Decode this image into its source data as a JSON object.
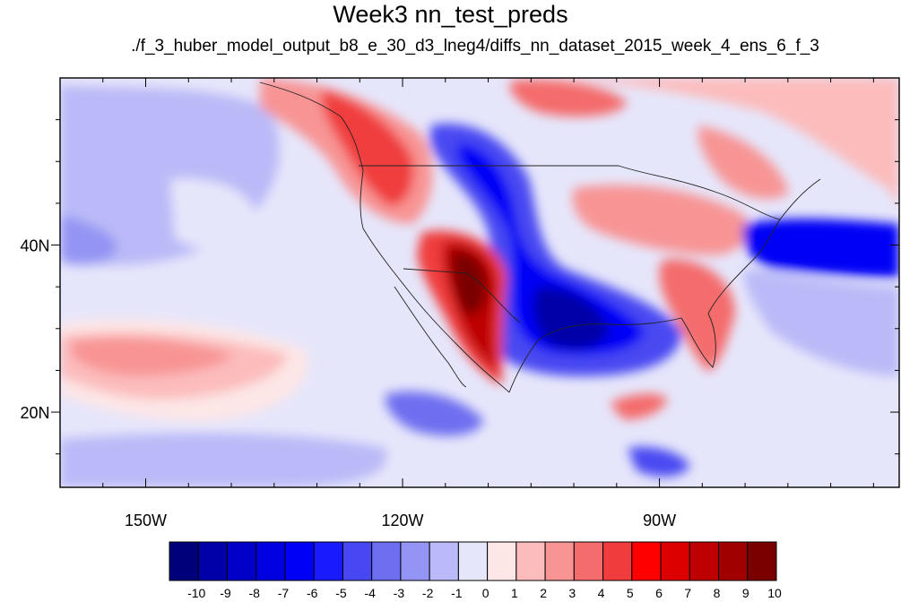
{
  "title": "Week3 nn_test_preds",
  "subtitle": "./f_3_huber_model_output_b8_e_30_d3_lneg4/diffs_nn_dataset_2015_week_4_ens_6_f_3",
  "map": {
    "lon_range": [
      -160,
      -62
    ],
    "lat_range": [
      11,
      60
    ],
    "lon_ticks": [
      {
        "value": -150,
        "label": "150W"
      },
      {
        "value": -120,
        "label": "120W"
      },
      {
        "value": -90,
        "label": "90W"
      }
    ],
    "lat_ticks": [
      {
        "value": 40,
        "label": "40N"
      },
      {
        "value": 20,
        "label": "20N"
      }
    ]
  },
  "colorbar": {
    "labels": [
      "-10",
      "-9",
      "-8",
      "-7",
      "-6",
      "-5",
      "-4",
      "-3",
      "-2",
      "-1",
      "0",
      "1",
      "2",
      "3",
      "4",
      "5",
      "6",
      "7",
      "8",
      "9",
      "10"
    ],
    "colors": [
      "#00007a",
      "#0000a8",
      "#0000c8",
      "#0000e0",
      "#0000f6",
      "#1a1aff",
      "#4848f2",
      "#6e6ef0",
      "#9494f4",
      "#babaf8",
      "#e6e6fb",
      "#fde6e6",
      "#fcbcbc",
      "#f89494",
      "#f46c6c",
      "#f03c3c",
      "#fe0000",
      "#dc0000",
      "#be0000",
      "#a00000",
      "#7a0000"
    ]
  }
}
